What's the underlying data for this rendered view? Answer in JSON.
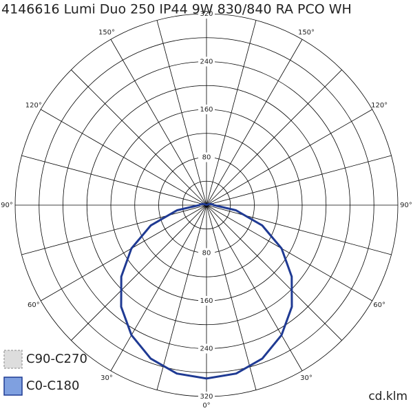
{
  "chart_data": {
    "type": "polar",
    "title": "4146616 Lumi Duo 250 IP44 9W 830/840 RA PCO WH",
    "unit_label": "cd.klm",
    "rlim": [
      0,
      320
    ],
    "rticks": [
      80,
      160,
      240,
      320
    ],
    "rminor": [
      40,
      120,
      200,
      280
    ],
    "angle_step": 15,
    "angle_labels": [
      {
        "value": 30,
        "label": "30°"
      },
      {
        "value": 60,
        "label": "60°"
      },
      {
        "value": 90,
        "label": "90°"
      },
      {
        "value": 120,
        "label": "120°"
      },
      {
        "value": 150,
        "label": "150°"
      }
    ],
    "bottom_label": {
      "value": 0,
      "label": "0°"
    },
    "x": [
      -180,
      -170,
      -160,
      -150,
      -140,
      -130,
      -120,
      -110,
      -100,
      -90,
      -80,
      -70,
      -60,
      -50,
      -40,
      -30,
      -20,
      -10,
      0,
      10,
      20,
      30,
      40,
      50,
      60,
      70,
      80,
      90,
      100,
      110,
      120,
      130,
      140,
      150,
      160,
      170,
      180
    ],
    "series": [
      {
        "name": "C90-C270",
        "color": "#d3d3d3",
        "values": [
          0,
          0,
          0,
          0,
          0,
          0,
          2,
          6,
          9,
          12,
          50,
          99,
          145,
          186,
          222,
          251,
          273,
          286,
          290,
          286,
          273,
          251,
          222,
          186,
          145,
          99,
          50,
          12,
          9,
          6,
          2,
          0,
          0,
          0,
          0,
          0,
          0
        ]
      },
      {
        "name": "C0-C180",
        "color": "#1f3a93",
        "values": [
          0,
          0,
          0,
          0,
          0,
          0,
          2,
          6,
          9,
          12,
          50,
          99,
          145,
          186,
          222,
          251,
          273,
          286,
          290,
          286,
          273,
          251,
          222,
          186,
          145,
          99,
          50,
          12,
          9,
          6,
          2,
          0,
          0,
          0,
          0,
          0,
          0
        ]
      }
    ]
  }
}
